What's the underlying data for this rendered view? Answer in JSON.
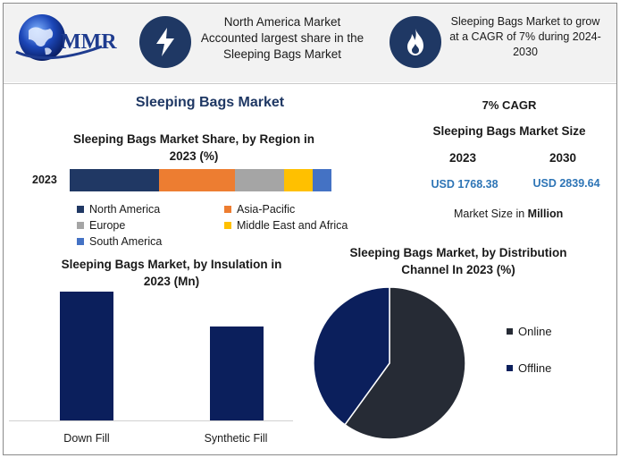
{
  "header": {
    "logo_text": "MMR",
    "text_left": [
      "North America Market",
      "Accounted largest share in the",
      "Sleeping Bags Market"
    ],
    "text_right": [
      "Sleeping Bags Market to grow",
      "at a CAGR of 7% during 2024-",
      "2030"
    ],
    "icon_left": "lightning-icon",
    "icon_right": "flame-icon"
  },
  "main_title": "Sleeping Bags Market",
  "colors": {
    "north_america": "#203864",
    "asia_pacific": "#ed7d31",
    "europe": "#a5a5a5",
    "mea": "#ffc000",
    "south_america": "#4472c4",
    "bar": "#0b1f5c",
    "pie_online": "#262b35",
    "pie_offline": "#0b1f5c",
    "kpi_value": "#2e75b6"
  },
  "kpi": {
    "cagr": "7% CAGR",
    "size_title": "Sleeping Bags Market Size",
    "year_a": "2023",
    "year_b": "2030",
    "value_a": "USD 1768.38",
    "value_b": "USD 2839.64",
    "unit_note_prefix": "Market Size in ",
    "unit_note_bold": "Million"
  },
  "chart_data": [
    {
      "type": "bar",
      "stacked": true,
      "orientation": "horizontal",
      "title": "Sleeping Bags Market Share, by Region in 2023 (%)",
      "title_lines": [
        "Sleeping Bags Market Share, by Region in",
        "2023 (%)"
      ],
      "categories": [
        "2023"
      ],
      "series": [
        {
          "name": "North America",
          "values": [
            34
          ]
        },
        {
          "name": "Asia-Pacific",
          "values": [
            29
          ]
        },
        {
          "name": "Europe",
          "values": [
            19
          ]
        },
        {
          "name": "Middle East and Africa",
          "values": [
            11
          ]
        },
        {
          "name": "South America",
          "values": [
            7
          ]
        }
      ],
      "legend": "bottom"
    },
    {
      "type": "bar",
      "title": "Sleeping Bags Market, by Insulation in 2023 (Mn)",
      "title_lines": [
        "Sleeping Bags Market, by Insulation in",
        "2023 (Mn)"
      ],
      "categories": [
        "Down Fill",
        "Synthetic Fill"
      ],
      "values": [
        1000,
        730
      ],
      "ylim": [
        0,
        1000
      ],
      "grid": false
    },
    {
      "type": "pie",
      "title": "Sleeping Bags Market, by Distribution Channel In 2023 (%)",
      "title_lines": [
        "Sleeping Bags Market, by Distribution",
        "Channel In 2023 (%)"
      ],
      "labels": [
        "Online",
        "Offline"
      ],
      "values": [
        60,
        40
      ],
      "legend": "right"
    }
  ]
}
